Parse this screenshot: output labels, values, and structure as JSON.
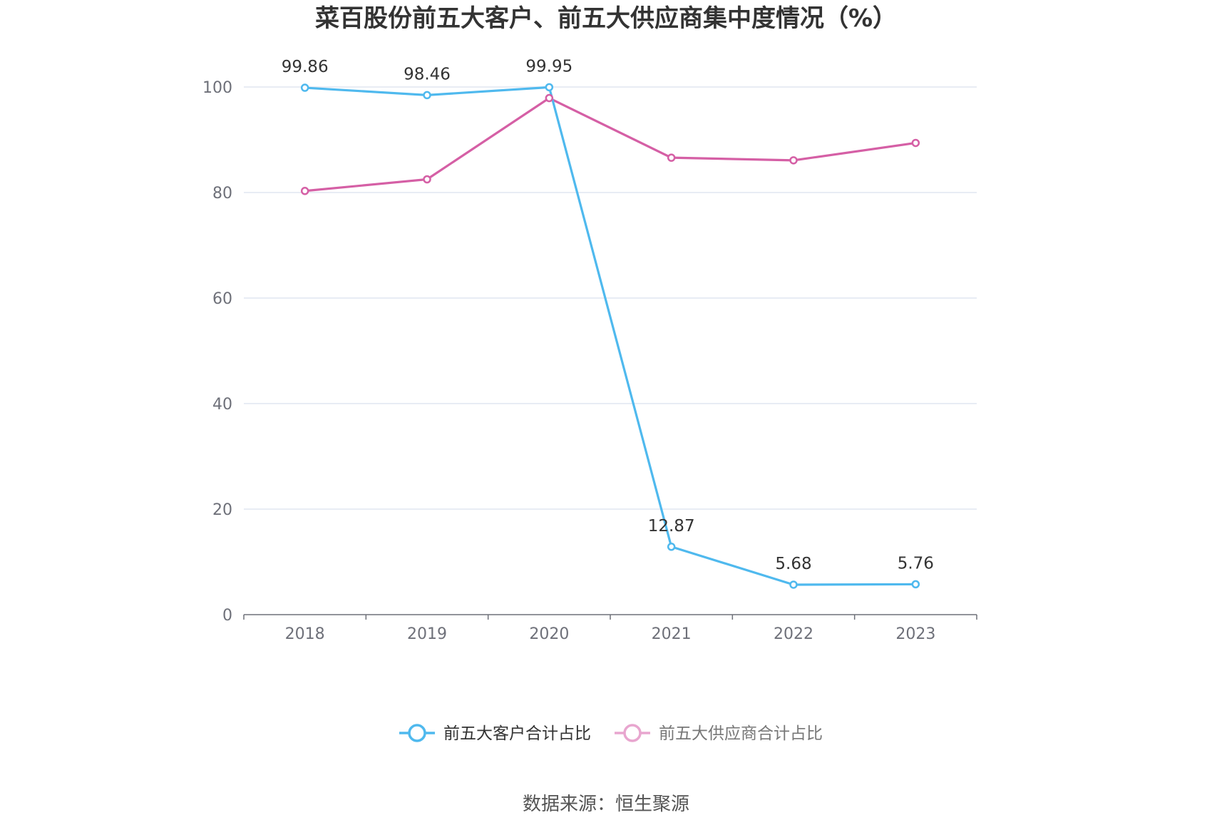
{
  "chart_data": {
    "type": "line",
    "title": "菜百股份前五大客户、前五大供应商集中度情况（%）",
    "categories": [
      "2018",
      "2019",
      "2020",
      "2021",
      "2022",
      "2023"
    ],
    "ylim": [
      0,
      100
    ],
    "yticks": [
      0,
      20,
      40,
      60,
      80,
      100
    ],
    "grid": true,
    "legend_position": "bottom",
    "series": [
      {
        "name": "前五大客户合计占比",
        "values": [
          99.86,
          98.46,
          99.95,
          12.87,
          5.68,
          5.76
        ],
        "labels": [
          "99.86",
          "98.46",
          "99.95",
          "12.87",
          "5.68",
          "5.76"
        ],
        "color": "#4fb9ee",
        "legend_active": true
      },
      {
        "name": "前五大供应商合计占比",
        "values": [
          80.3,
          82.5,
          97.9,
          86.6,
          86.1,
          89.4
        ],
        "color": "#d55fa5",
        "legend_active": false,
        "legend_color": "#e8a6cf"
      }
    ],
    "source": "数据来源：恒生聚源"
  }
}
